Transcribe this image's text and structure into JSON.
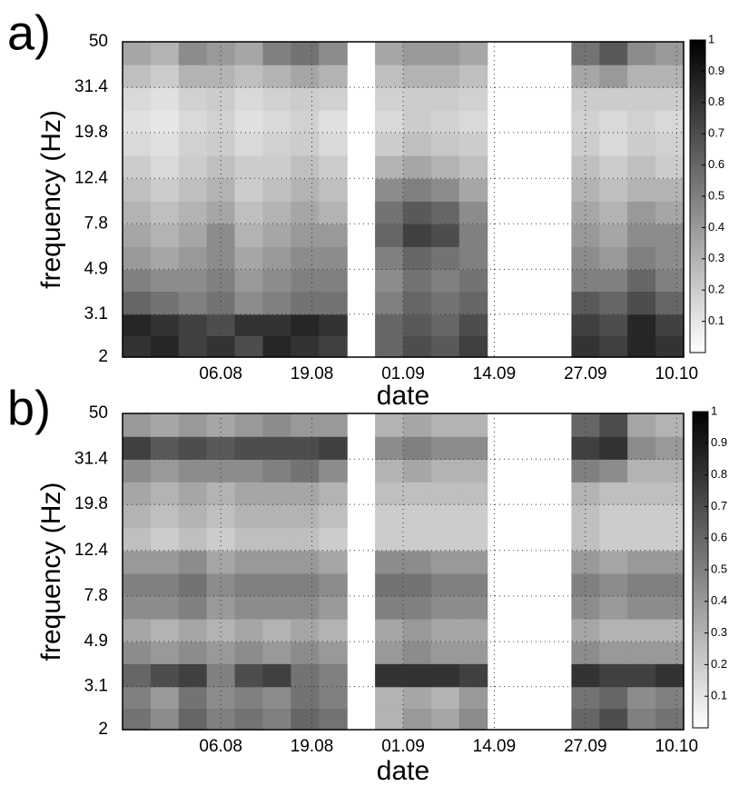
{
  "chart_data": [
    {
      "type": "heatmap",
      "panel_label": "a)",
      "xlabel": "date",
      "ylabel": "frequency (Hz)",
      "xlim": [
        204,
        284
      ],
      "ylim": [
        2,
        50
      ],
      "yscale": "log",
      "grid": true,
      "colormap": [
        "#ffffff",
        "#000000"
      ],
      "xbins": [
        204,
        208,
        212,
        216,
        220,
        224,
        228,
        232,
        236,
        240,
        244,
        248,
        252,
        256,
        260,
        264,
        268,
        272,
        276,
        280,
        284
      ],
      "ybins": [
        2,
        2.49,
        3.1,
        3.92,
        4.9,
        6.18,
        7.8,
        9.83,
        12.4,
        15.67,
        19.8,
        24.93,
        31.4,
        39.6,
        50
      ],
      "xticks": [
        {
          "value": 218,
          "label": "06.08"
        },
        {
          "value": 231,
          "label": "19.08"
        },
        {
          "value": 244,
          "label": "01.09"
        },
        {
          "value": 257,
          "label": "14.09"
        },
        {
          "value": 270,
          "label": "27.09"
        },
        {
          "value": 283,
          "label": "10.10"
        }
      ],
      "yticks": [
        2,
        3.1,
        4.9,
        7.8,
        12.4,
        19.8,
        31.4,
        50
      ],
      "clim": [
        0,
        1
      ],
      "cticks": [
        0.1,
        0.2,
        0.3,
        0.4,
        0.5,
        0.6,
        0.7,
        0.8,
        0.9,
        1
      ],
      "z": [
        [
          0.8,
          0.85,
          0.75,
          0.8,
          0.7,
          0.85,
          0.8,
          0.75,
          null,
          0.6,
          0.7,
          0.65,
          0.75,
          null,
          null,
          null,
          0.8,
          0.75,
          0.85,
          0.8
        ],
        [
          0.85,
          0.8,
          0.75,
          0.7,
          0.8,
          0.8,
          0.85,
          0.8,
          null,
          0.6,
          0.65,
          0.6,
          0.7,
          null,
          null,
          null,
          0.75,
          0.7,
          0.85,
          0.75
        ],
        [
          0.6,
          0.55,
          0.5,
          0.55,
          0.45,
          0.5,
          0.55,
          0.55,
          null,
          0.5,
          0.6,
          0.55,
          0.6,
          null,
          null,
          null,
          0.65,
          0.6,
          0.7,
          0.6
        ],
        [
          0.5,
          0.45,
          0.45,
          0.5,
          0.4,
          0.45,
          0.5,
          0.5,
          null,
          0.45,
          0.55,
          0.5,
          0.55,
          null,
          null,
          null,
          0.5,
          0.5,
          0.6,
          0.5
        ],
        [
          0.4,
          0.35,
          0.4,
          0.45,
          0.35,
          0.4,
          0.45,
          0.45,
          null,
          0.5,
          0.6,
          0.55,
          0.5,
          null,
          null,
          null,
          0.45,
          0.4,
          0.5,
          0.45
        ],
        [
          0.35,
          0.3,
          0.35,
          0.45,
          0.3,
          0.35,
          0.4,
          0.4,
          null,
          0.6,
          0.75,
          0.7,
          0.5,
          null,
          null,
          null,
          0.4,
          0.35,
          0.45,
          0.45
        ],
        [
          0.3,
          0.25,
          0.3,
          0.35,
          0.25,
          0.3,
          0.35,
          0.3,
          null,
          0.55,
          0.65,
          0.6,
          0.45,
          null,
          null,
          null,
          0.35,
          0.3,
          0.4,
          0.35
        ],
        [
          0.25,
          0.2,
          0.25,
          0.3,
          0.2,
          0.25,
          0.3,
          0.25,
          null,
          0.45,
          0.5,
          0.45,
          0.35,
          null,
          null,
          null,
          0.3,
          0.25,
          0.3,
          0.3
        ],
        [
          0.2,
          0.15,
          0.2,
          0.25,
          0.2,
          0.2,
          0.25,
          0.2,
          null,
          0.3,
          0.35,
          0.3,
          0.25,
          null,
          null,
          null,
          0.25,
          0.2,
          0.25,
          0.2
        ],
        [
          0.15,
          0.12,
          0.18,
          0.2,
          0.15,
          0.18,
          0.2,
          0.15,
          null,
          0.2,
          0.25,
          0.22,
          0.2,
          null,
          null,
          null,
          0.2,
          0.15,
          0.2,
          0.18
        ],
        [
          0.12,
          0.1,
          0.15,
          0.18,
          0.12,
          0.15,
          0.18,
          0.12,
          null,
          0.15,
          0.2,
          0.18,
          0.15,
          null,
          null,
          null,
          0.18,
          0.15,
          0.18,
          0.15
        ],
        [
          0.15,
          0.12,
          0.18,
          0.2,
          0.15,
          0.18,
          0.2,
          0.18,
          null,
          0.18,
          0.2,
          0.2,
          0.18,
          null,
          null,
          null,
          0.2,
          0.2,
          0.2,
          0.2
        ],
        [
          0.25,
          0.2,
          0.3,
          0.3,
          0.25,
          0.3,
          0.35,
          0.3,
          null,
          0.25,
          0.3,
          0.3,
          0.25,
          null,
          null,
          null,
          0.35,
          0.4,
          0.3,
          0.3
        ],
        [
          0.35,
          0.3,
          0.45,
          0.4,
          0.35,
          0.5,
          0.55,
          0.45,
          null,
          0.35,
          0.4,
          0.4,
          0.35,
          null,
          null,
          null,
          0.55,
          0.65,
          0.45,
          0.4
        ]
      ]
    },
    {
      "type": "heatmap",
      "panel_label": "b)",
      "xlabel": "date",
      "ylabel": "frequency (Hz)",
      "xlim": [
        204,
        284
      ],
      "ylim": [
        2,
        50
      ],
      "yscale": "log",
      "grid": true,
      "colormap": [
        "#ffffff",
        "#000000"
      ],
      "xbins": [
        204,
        208,
        212,
        216,
        220,
        224,
        228,
        232,
        236,
        240,
        244,
        248,
        252,
        256,
        260,
        264,
        268,
        272,
        276,
        280,
        284
      ],
      "ybins": [
        2,
        2.49,
        3.1,
        3.92,
        4.9,
        6.18,
        7.8,
        9.83,
        12.4,
        15.67,
        19.8,
        24.93,
        31.4,
        39.6,
        50
      ],
      "xticks": [
        {
          "value": 218,
          "label": "06.08"
        },
        {
          "value": 231,
          "label": "19.08"
        },
        {
          "value": 244,
          "label": "01.09"
        },
        {
          "value": 257,
          "label": "14.09"
        },
        {
          "value": 270,
          "label": "27.09"
        },
        {
          "value": 283,
          "label": "10.10"
        }
      ],
      "yticks": [
        2,
        3.1,
        4.9,
        7.8,
        12.4,
        19.8,
        31.4,
        50
      ],
      "clim": [
        0,
        1
      ],
      "cticks": [
        0.1,
        0.2,
        0.3,
        0.4,
        0.5,
        0.6,
        0.7,
        0.8,
        0.9,
        1
      ],
      "z": [
        [
          0.55,
          0.45,
          0.6,
          0.5,
          0.55,
          0.5,
          0.6,
          0.55,
          null,
          0.3,
          0.4,
          0.35,
          0.45,
          null,
          null,
          null,
          0.6,
          0.7,
          0.5,
          0.55
        ],
        [
          0.5,
          0.4,
          0.55,
          0.45,
          0.5,
          0.45,
          0.55,
          0.5,
          null,
          0.3,
          0.35,
          0.3,
          0.4,
          null,
          null,
          null,
          0.55,
          0.6,
          0.45,
          0.5
        ],
        [
          0.6,
          0.7,
          0.75,
          0.5,
          0.7,
          0.75,
          0.55,
          0.5,
          null,
          0.8,
          0.8,
          0.8,
          0.75,
          null,
          null,
          null,
          0.8,
          0.75,
          0.75,
          0.8
        ],
        [
          0.45,
          0.4,
          0.45,
          0.4,
          0.45,
          0.4,
          0.45,
          0.4,
          null,
          0.4,
          0.45,
          0.4,
          0.4,
          null,
          null,
          null,
          0.45,
          0.4,
          0.4,
          0.4
        ],
        [
          0.35,
          0.3,
          0.35,
          0.3,
          0.35,
          0.3,
          0.35,
          0.3,
          null,
          0.35,
          0.4,
          0.35,
          0.35,
          null,
          null,
          null,
          0.35,
          0.3,
          0.3,
          0.3
        ],
        [
          0.45,
          0.45,
          0.5,
          0.4,
          0.45,
          0.45,
          0.45,
          0.4,
          null,
          0.5,
          0.5,
          0.45,
          0.45,
          null,
          null,
          null,
          0.45,
          0.4,
          0.45,
          0.45
        ],
        [
          0.5,
          0.5,
          0.55,
          0.45,
          0.5,
          0.5,
          0.5,
          0.45,
          null,
          0.55,
          0.55,
          0.5,
          0.5,
          null,
          null,
          null,
          0.5,
          0.45,
          0.5,
          0.5
        ],
        [
          0.4,
          0.4,
          0.45,
          0.35,
          0.4,
          0.4,
          0.4,
          0.35,
          null,
          0.45,
          0.45,
          0.4,
          0.4,
          null,
          null,
          null,
          0.4,
          0.35,
          0.4,
          0.4
        ],
        [
          0.25,
          0.2,
          0.25,
          0.2,
          0.25,
          0.25,
          0.25,
          0.2,
          null,
          0.2,
          0.2,
          0.2,
          0.2,
          null,
          null,
          null,
          0.25,
          0.2,
          0.2,
          0.2
        ],
        [
          0.3,
          0.25,
          0.3,
          0.25,
          0.3,
          0.3,
          0.3,
          0.25,
          null,
          0.2,
          0.2,
          0.2,
          0.2,
          null,
          null,
          null,
          0.25,
          0.2,
          0.2,
          0.2
        ],
        [
          0.35,
          0.3,
          0.35,
          0.3,
          0.35,
          0.35,
          0.35,
          0.3,
          null,
          0.25,
          0.25,
          0.25,
          0.25,
          null,
          null,
          null,
          0.3,
          0.25,
          0.25,
          0.25
        ],
        [
          0.45,
          0.4,
          0.45,
          0.45,
          0.45,
          0.5,
          0.55,
          0.45,
          null,
          0.3,
          0.35,
          0.3,
          0.3,
          null,
          null,
          null,
          0.5,
          0.45,
          0.3,
          0.3
        ],
        [
          0.75,
          0.65,
          0.7,
          0.65,
          0.7,
          0.7,
          0.7,
          0.75,
          null,
          0.45,
          0.5,
          0.45,
          0.45,
          null,
          null,
          null,
          0.75,
          0.8,
          0.45,
          0.4
        ],
        [
          0.4,
          0.35,
          0.4,
          0.35,
          0.4,
          0.45,
          0.4,
          0.4,
          null,
          0.3,
          0.35,
          0.3,
          0.3,
          null,
          null,
          null,
          0.6,
          0.7,
          0.35,
          0.3
        ]
      ]
    }
  ]
}
